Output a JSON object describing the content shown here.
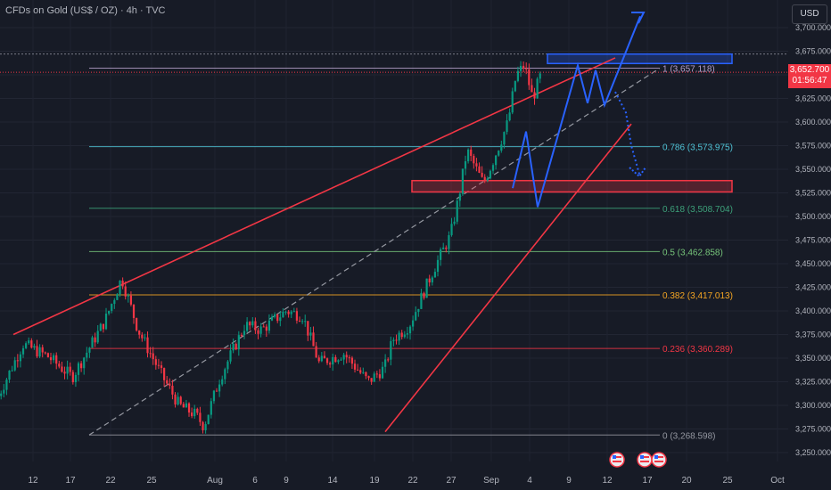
{
  "header": {
    "title": "CFDs on Gold (US$ / OZ) · 4h · TVC",
    "currency_button": "USD"
  },
  "last_price": {
    "value": "3,652.700",
    "countdown": "01:56:47",
    "color": "#f23645"
  },
  "chart_data": {
    "type": "candlestick",
    "title": "CFDs on Gold (US$ / OZ) · 4h · TVC",
    "ylim": [
      3240,
      3715
    ],
    "y_ticks": [
      "3,700.000",
      "3,675.000",
      "3,650.000",
      "3,625.000",
      "3,600.000",
      "3,575.000",
      "3,550.000",
      "3,525.000",
      "3,500.000",
      "3,475.000",
      "3,450.000",
      "3,425.000",
      "3,400.000",
      "3,375.000",
      "3,350.000",
      "3,325.000",
      "3,300.000",
      "3,275.000",
      "3,250.000"
    ],
    "x_ticks": [
      "12",
      "17",
      "22",
      "25",
      "Aug",
      "6",
      "9",
      "14",
      "19",
      "22",
      "27",
      "Sep",
      "4",
      "9",
      "12",
      "17",
      "20",
      "25",
      "Oct"
    ],
    "grid": true,
    "trend_path": [
      [
        "Jul 8",
        3310
      ],
      [
        "Jul 11",
        3365
      ],
      [
        "Jul 14",
        3352
      ],
      [
        "Jul 17",
        3330
      ],
      [
        "Jul 21",
        3390
      ],
      [
        "Jul 23",
        3435
      ],
      [
        "Jul 25",
        3380
      ],
      [
        "Jul 28",
        3330
      ],
      [
        "Jul 30",
        3300
      ],
      [
        "Aug 1",
        3290
      ],
      [
        "Aug 2",
        3278
      ],
      [
        "Aug 4",
        3330
      ],
      [
        "Aug 7",
        3385
      ],
      [
        "Aug 9",
        3380
      ],
      [
        "Aug 12",
        3400
      ],
      [
        "Aug 14",
        3395
      ],
      [
        "Aug 16",
        3345
      ],
      [
        "Aug 19",
        3355
      ],
      [
        "Aug 22",
        3325
      ],
      [
        "Aug 24",
        3340
      ],
      [
        "Aug 25",
        3370
      ],
      [
        "Aug 27",
        3385
      ],
      [
        "Aug 28",
        3405
      ],
      [
        "Aug 30",
        3445
      ],
      [
        "Sep 1",
        3480
      ],
      [
        "Sep 2",
        3520
      ],
      [
        "Sep 3",
        3570
      ],
      [
        "Sep 5",
        3535
      ],
      [
        "Sep 6",
        3555
      ],
      [
        "Sep 8",
        3600
      ],
      [
        "Sep 9",
        3650
      ],
      [
        "Sep 10",
        3660
      ],
      [
        "Sep 11",
        3625
      ],
      [
        "Sep 12",
        3650
      ]
    ],
    "fibonacci": [
      {
        "level": "1",
        "price": "3,657.118",
        "color": "#b49fc9"
      },
      {
        "level": "0.786",
        "price": "3,573.975",
        "color": "#4fc3d6"
      },
      {
        "level": "0.618",
        "price": "3,508.704",
        "color": "#3da17a"
      },
      {
        "level": "0.5",
        "price": "3,462.858",
        "color": "#76c47a"
      },
      {
        "level": "0.382",
        "price": "3,417.013",
        "color": "#f5a623"
      },
      {
        "level": "0.236",
        "price": "3,360.289",
        "color": "#f23645"
      },
      {
        "level": "0",
        "price": "3,268.598",
        "color": "#9598a1"
      }
    ],
    "zones": [
      {
        "name": "resistance",
        "from": 3662,
        "to": 3672,
        "color": "#2962ff"
      },
      {
        "name": "support",
        "from": 3526,
        "to": 3538,
        "color": "#f23645"
      }
    ],
    "channel_color": "#f23645",
    "projection_color": "#2962ff",
    "event_icons": 3
  }
}
